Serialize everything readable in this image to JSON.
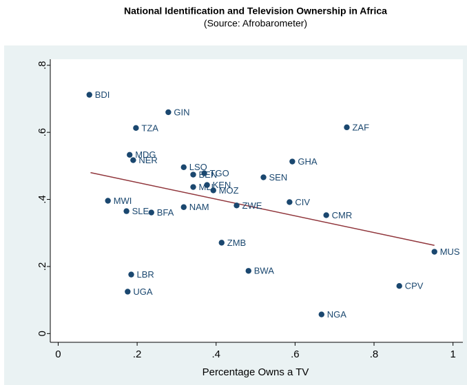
{
  "chart_data": {
    "type": "scatter",
    "title": "National Identification and Television Ownership in Africa",
    "subtitle": "(Source: Afrobarometer)",
    "x_label": "Percentage Owns a TV",
    "color": "#1a476f",
    "labels": [
      "BDI",
      "GIN",
      "TZA",
      "ZAF",
      "MDG",
      "NER",
      "LSO",
      "BEN",
      "TGO",
      "KEN",
      "MLI",
      "MOZ",
      "SEN",
      "GHA",
      "MWI",
      "SLE",
      "BFA",
      "NAM",
      "ZWE",
      "CIV",
      "CMR",
      "ZMB",
      "MUS",
      "LBR",
      "BWA",
      "UGA",
      "CPV",
      "NGA"
    ],
    "x": [
      0.079,
      0.279,
      0.197,
      0.731,
      0.181,
      0.19,
      0.318,
      0.342,
      0.37,
      0.377,
      0.342,
      0.393,
      0.52,
      0.593,
      0.126,
      0.173,
      0.236,
      0.318,
      0.452,
      0.586,
      0.679,
      0.414,
      0.953,
      0.185,
      0.482,
      0.176,
      0.864,
      0.667
    ],
    "y": [
      0.712,
      0.66,
      0.613,
      0.615,
      0.533,
      0.517,
      0.496,
      0.474,
      0.478,
      0.443,
      0.437,
      0.427,
      0.466,
      0.513,
      0.396,
      0.365,
      0.361,
      0.377,
      0.382,
      0.392,
      0.353,
      0.271,
      0.244,
      0.176,
      0.187,
      0.125,
      0.142,
      0.057
    ],
    "fit": {
      "color": "#90353b",
      "x": [
        0.082,
        0.953
      ],
      "y": [
        0.48,
        0.263
      ]
    },
    "xlim": [
      -0.02,
      1.025
    ],
    "ylim": [
      -0.026,
      0.818
    ],
    "xticks": [
      0,
      {
        "value": 0.2,
        "label": ".2"
      },
      {
        "value": 0.4,
        "label": ".4"
      },
      {
        "value": 0.6,
        "label": ".6"
      },
      {
        "value": 0.8,
        "label": ".8"
      },
      1
    ],
    "yticks": [
      0,
      {
        "value": 0.2,
        "label": ".2"
      },
      {
        "value": 0.4,
        "label": ".4"
      },
      {
        "value": 0.6,
        "label": ".6"
      },
      {
        "value": 0.8,
        "label": ".8"
      }
    ]
  }
}
